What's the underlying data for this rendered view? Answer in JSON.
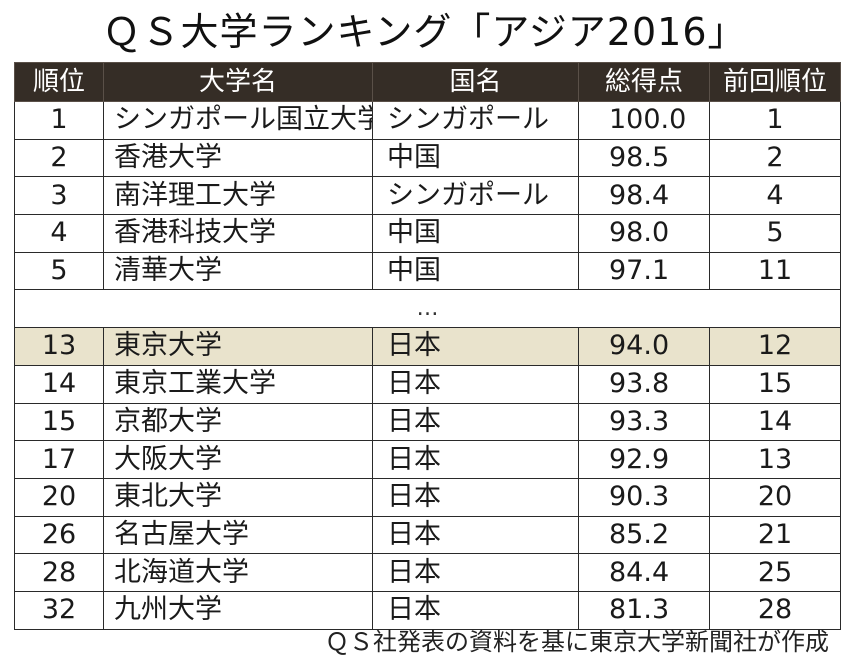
{
  "title": "ＱＳ大学ランキング「アジア2016」",
  "table": {
    "headers": {
      "rank": "順位",
      "university": "大学名",
      "country": "国名",
      "score": "総得点",
      "prev_rank": "前回順位"
    },
    "top_rows": [
      {
        "rank": "1",
        "university": "シンガポール国立大学",
        "country": "シンガポール",
        "score": "100.0",
        "prev_rank": "1"
      },
      {
        "rank": "2",
        "university": "香港大学",
        "country": "中国",
        "score": "98.5",
        "prev_rank": "2"
      },
      {
        "rank": "3",
        "university": "南洋理工大学",
        "country": "シンガポール",
        "score": "98.4",
        "prev_rank": "4"
      },
      {
        "rank": "4",
        "university": "香港科技大学",
        "country": "中国",
        "score": "98.0",
        "prev_rank": "5"
      },
      {
        "rank": "5",
        "university": "清華大学",
        "country": "中国",
        "score": "97.1",
        "prev_rank": "11"
      }
    ],
    "ellipsis": "…",
    "bottom_rows": [
      {
        "rank": "13",
        "university": "東京大学",
        "country": "日本",
        "score": "94.0",
        "prev_rank": "12"
      },
      {
        "rank": "14",
        "university": "東京工業大学",
        "country": "日本",
        "score": "93.8",
        "prev_rank": "15"
      },
      {
        "rank": "15",
        "university": "京都大学",
        "country": "日本",
        "score": "93.3",
        "prev_rank": "14"
      },
      {
        "rank": "17",
        "university": "大阪大学",
        "country": "日本",
        "score": "92.9",
        "prev_rank": "13"
      },
      {
        "rank": "20",
        "university": "東北大学",
        "country": "日本",
        "score": "90.3",
        "prev_rank": "20"
      },
      {
        "rank": "26",
        "university": "名古屋大学",
        "country": "日本",
        "score": "85.2",
        "prev_rank": "21"
      },
      {
        "rank": "28",
        "university": "北海道大学",
        "country": "日本",
        "score": "84.4",
        "prev_rank": "25"
      },
      {
        "rank": "32",
        "university": "九州大学",
        "country": "日本",
        "score": "81.3",
        "prev_rank": "28"
      }
    ]
  },
  "source": "ＱＳ社発表の資料を基に東京大学新聞社が作成",
  "colors": {
    "header_bg": "#352d26",
    "header_text": "#ffffff",
    "highlight_row": "#e9e3cc"
  }
}
